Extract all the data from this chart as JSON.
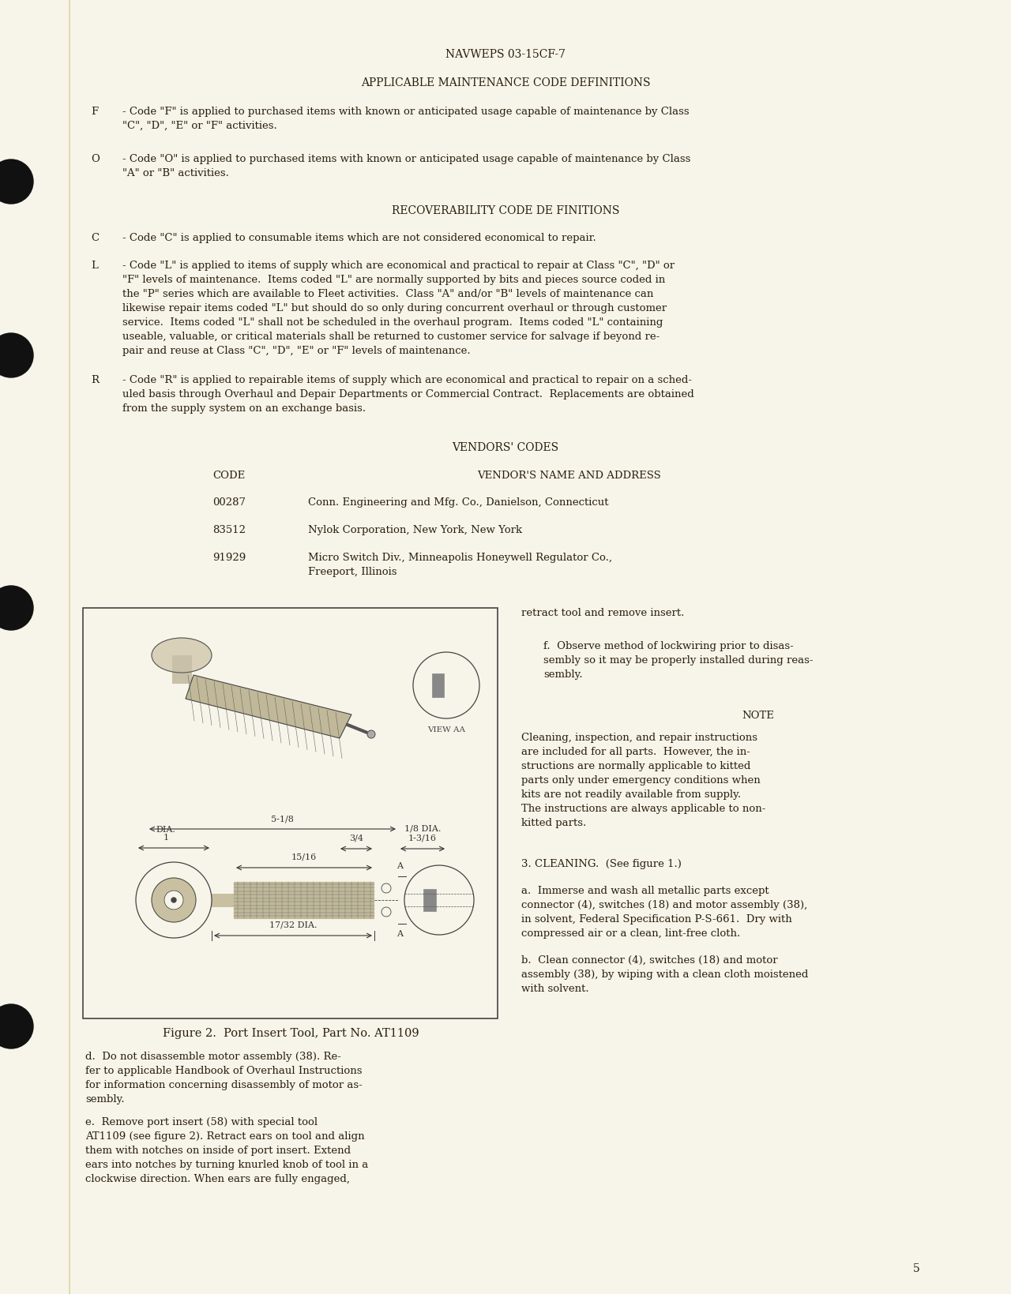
{
  "bg_color": "#f7f4e9",
  "text_color": "#2a1f0e",
  "page_header": "NAVWEPS 03-15CF-7",
  "section1_title": "APPLICABLE MAINTENANCE CODE DEFINITIONS",
  "section2_title": "RECOVERABILITY CODE DE FINITIONS",
  "section3_title": "VENDORS' CODES",
  "vendors_header_code": "CODE",
  "vendors_header_name": "VENDOR'S NAME AND ADDRESS",
  "vendor1_code": "00287",
  "vendor1_name": "Conn. Engineering and Mfg. Co., Danielson, Connecticut",
  "vendor2_code": "83512",
  "vendor2_name": "Nylok Corporation, New York, New York",
  "vendor3_code": "91929",
  "vendor3_name1": "Micro Switch Div., Minneapolis Honeywell Regulator Co.,",
  "vendor3_name2": "Freeport, Illinois",
  "F_code": "F",
  "F_text1": "- Code \"F\" is applied to purchased items with known or anticipated usage capable of maintenance by Class",
  "F_text2": "\"C\", \"D\", \"E\" or \"F\" activities.",
  "O_code": "O",
  "O_text1": "- Code \"O\" is applied to purchased items with known or anticipated usage capable of maintenance by Class",
  "O_text2": "\"A\" or \"B\" activities.",
  "C_code": "C",
  "C_text": "- Code \"C\" is applied to consumable items which are not considered economical to repair.",
  "L_code": "L",
  "L_text1": "- Code \"L\" is applied to items of supply which are economical and practical to repair at Class \"C\", \"D\" or",
  "L_text2": "\"F\" levels of maintenance.  Items coded \"L\" are normally supported by bits and pieces source coded in",
  "L_text3": "the \"P\" series which are available to Fleet activities.  Class \"A\" and/or \"B\" levels of maintenance can",
  "L_text4": "likewise repair items coded \"L\" but should do so only during concurrent overhaul or through customer",
  "L_text5": "service.  Items coded \"L\" shall not be scheduled in the overhaul program.  Items coded \"L\" containing",
  "L_text6": "useable, valuable, or critical materials shall be returned to customer service for salvage if beyond re-",
  "L_text7": "pair and reuse at Class \"C\", \"D\", \"E\" or \"F\" levels of maintenance.",
  "R_code": "R",
  "R_text1": "- Code \"R\" is applied to repairable items of supply which are economical and practical to repair on a sched-",
  "R_text2": "uled basis through Overhaul and Depair Departments or Commercial Contract.  Replacements are obtained",
  "R_text3": "from the supply system on an exchange basis.",
  "right_retract": "retract tool and remove insert.",
  "right_f_text1": "f.  Observe method of lockwiring prior to disas-",
  "right_f_text2": "sembly so it may be properly installed during reas-",
  "right_f_text3": "sembly.",
  "note_title": "NOTE",
  "note1": "Cleaning, inspection, and repair instructions",
  "note2": "are included for all parts.  However, the in-",
  "note3": "structions are normally applicable to kitted",
  "note4": "parts only under emergency conditions when",
  "note5": "kits are not readily available from supply.",
  "note6": "The instructions are always applicable to non-",
  "note7": "kitted parts.",
  "fig_caption": "Figure 2.  Port Insert Tool, Part No. AT1109",
  "d_text1": "d.  Do not disassemble motor assembly (38). Re-",
  "d_text2": "fer to applicable Handbook of Overhaul Instructions",
  "d_text3": "for information concerning disassembly of motor as-",
  "d_text4": "sembly.",
  "e_text1": "e.  Remove port insert (58) with special tool",
  "e_text2": "AT1109 (see figure 2). Retract ears on tool and align",
  "e_text3": "them with notches on inside of port insert. Extend",
  "e_text4": "ears into notches by turning knurled knob of tool in a",
  "e_text5": "clockwise direction. When ears are fully engaged,",
  "cleaning_title": "3. CLEANING.  (See figure 1.)",
  "a_text1": "a.  Immerse and wash all metallic parts except",
  "a_text2": "connector (4), switches (18) and motor assembly (38),",
  "a_text3": "in solvent, Federal Specification P-S-661.  Dry with",
  "a_text4": "compressed air or a clean, lint-free cloth.",
  "b_text1": "b.  Clean connector (4), switches (18) and motor",
  "b_text2": "assembly (38), by wiping with a clean cloth moistened",
  "b_text3": "with solvent.",
  "page_num": "5"
}
